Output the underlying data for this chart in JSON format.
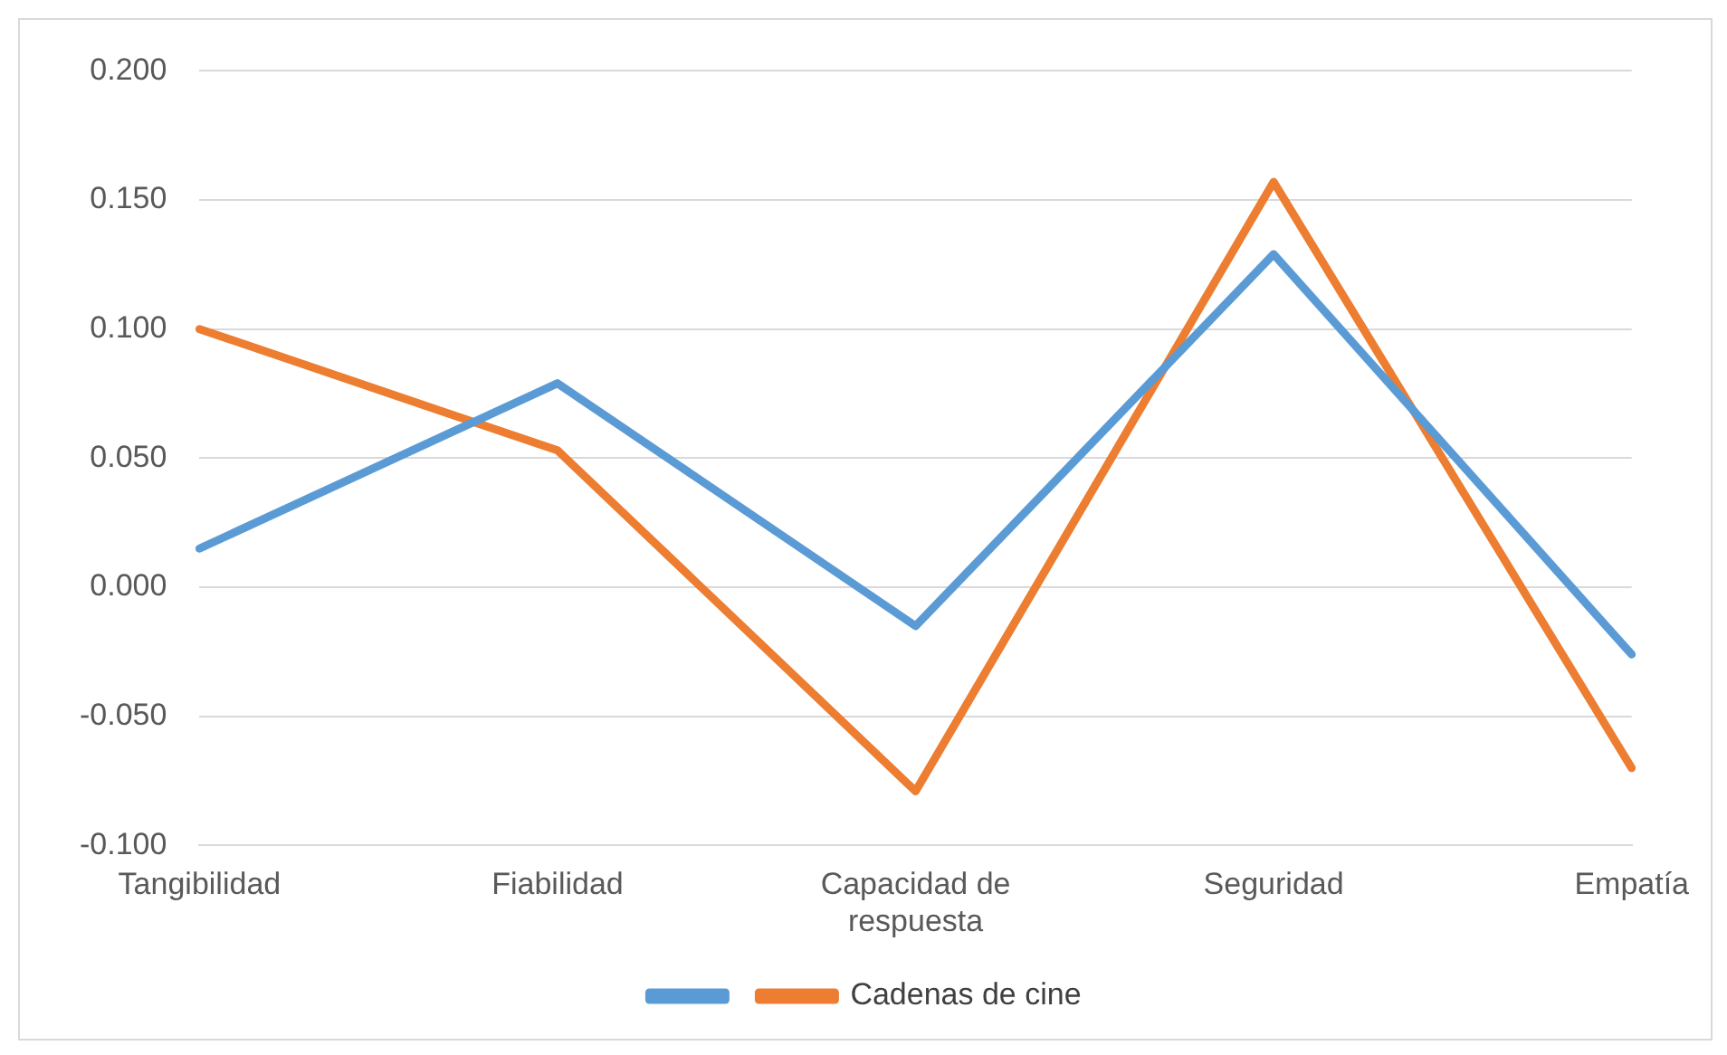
{
  "chart_data": {
    "type": "line",
    "categories": [
      "Tangibilidad",
      "Fiabilidad",
      "Capacidad de respuesta",
      "Seguridad",
      "Empatía"
    ],
    "series": [
      {
        "color": "#5b9bd5",
        "values": [
          0.015,
          0.079,
          -0.015,
          0.129,
          -0.026
        ]
      },
      {
        "name": "Cadenas de cine",
        "color": "#ed7d31",
        "values": [
          0.1,
          0.053,
          -0.079,
          0.157,
          -0.07
        ]
      }
    ],
    "ylim": [
      -0.1,
      0.2
    ],
    "yticks": [
      {
        "value": -0.1,
        "label": "-0.100"
      },
      {
        "value": -0.05,
        "label": "-0.050"
      },
      {
        "value": 0,
        "label": "0.000"
      },
      {
        "value": 0.05,
        "label": "0.050"
      },
      {
        "value": 0.1,
        "label": "0.100"
      },
      {
        "value": 0.15,
        "label": "0.150"
      },
      {
        "value": 0.2,
        "label": "0.200"
      }
    ],
    "grid": "y",
    "legend": "bottom",
    "marker": "none",
    "line_style": "solid"
  }
}
